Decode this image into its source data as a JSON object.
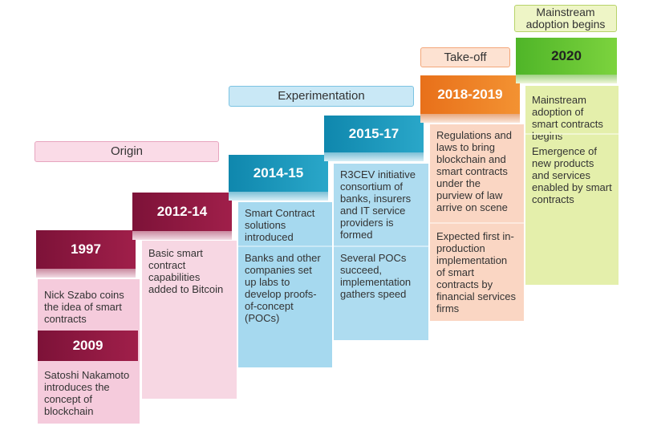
{
  "phases": {
    "origin": "Origin",
    "experimentation": "Experimentation",
    "takeoff": "Take-off",
    "mainstream": "Mainstream adoption begins"
  },
  "steps": [
    {
      "year": "1997",
      "texts": [
        "Nick Szabo coins the idea of smart contracts"
      ]
    },
    {
      "year": "2009",
      "texts": [
        "Satoshi Nakamoto introduces the concept of blockchain"
      ]
    },
    {
      "year": "2012-14",
      "texts": [
        "Basic smart contract capabilities added to Bitcoin"
      ]
    },
    {
      "year": "2014-15",
      "texts": [
        "Smart Contract solutions introduced",
        "Banks and other companies set up labs to develop proofs-of-concept (POCs)"
      ]
    },
    {
      "year": "2015-17",
      "texts": [
        "R3CEV initiative consortium of banks, insurers and IT service providers is formed",
        "Several POCs succeed, implementation gathers speed"
      ]
    },
    {
      "year": "2018-2019",
      "texts": [
        "Regulations and laws to bring blockchain and smart contracts under the purview of law arrive on scene",
        "Expected first in-production implementation of smart contracts by financial services firms"
      ]
    },
    {
      "year": "2020",
      "texts": [
        "Mainstream adoption of smart contracts begins",
        "Emergence of new products and services enabled by smart contracts"
      ]
    }
  ],
  "colors": {
    "maroon": "#9a1c45",
    "pink_panel": "#f5cbdc",
    "teal": "#1d9fc1",
    "blue_panel": "#a4d8ee",
    "orange": "#ef7d1e",
    "peach_panel": "#f9d1bd",
    "green": "#5fbf2e",
    "lime_panel": "#e3efaa"
  }
}
